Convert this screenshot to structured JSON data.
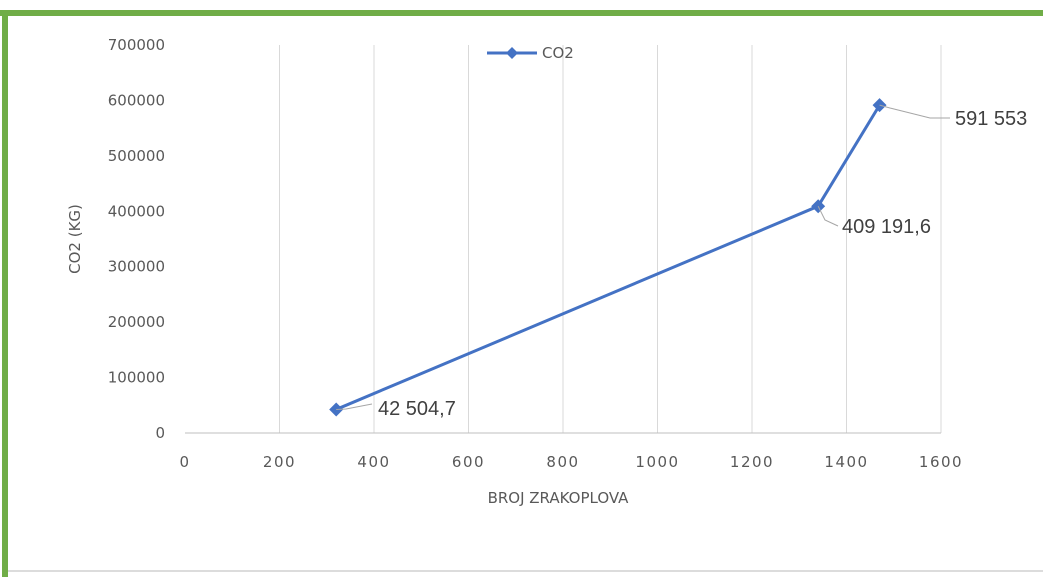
{
  "chart_data": {
    "type": "line",
    "title": "",
    "xlabel": "BROJ ZRAKOPLOVA",
    "ylabel": "CO2 (KG)",
    "xlim": [
      0,
      1600
    ],
    "ylim": [
      0,
      700000
    ],
    "x_ticks": [
      "0",
      "200",
      "400",
      "600",
      "800",
      "1000",
      "1200",
      "1400",
      "1600"
    ],
    "y_ticks": [
      "0",
      "100000",
      "200000",
      "300000",
      "400000",
      "500000",
      "600000",
      "700000"
    ],
    "grid": "vertical",
    "legend": "top-center",
    "series": [
      {
        "name": "CO2",
        "color": "#4472C4",
        "marker": "diamond",
        "x": [
          320,
          1340,
          1470
        ],
        "y": [
          42504.7,
          409191.6,
          591553
        ],
        "labels": [
          "42 504,7",
          "409 191,6",
          "591 553"
        ]
      }
    ]
  },
  "colors": {
    "frame": "#70AD47",
    "grid": "#D9D9D9",
    "series": "#4472C4"
  }
}
